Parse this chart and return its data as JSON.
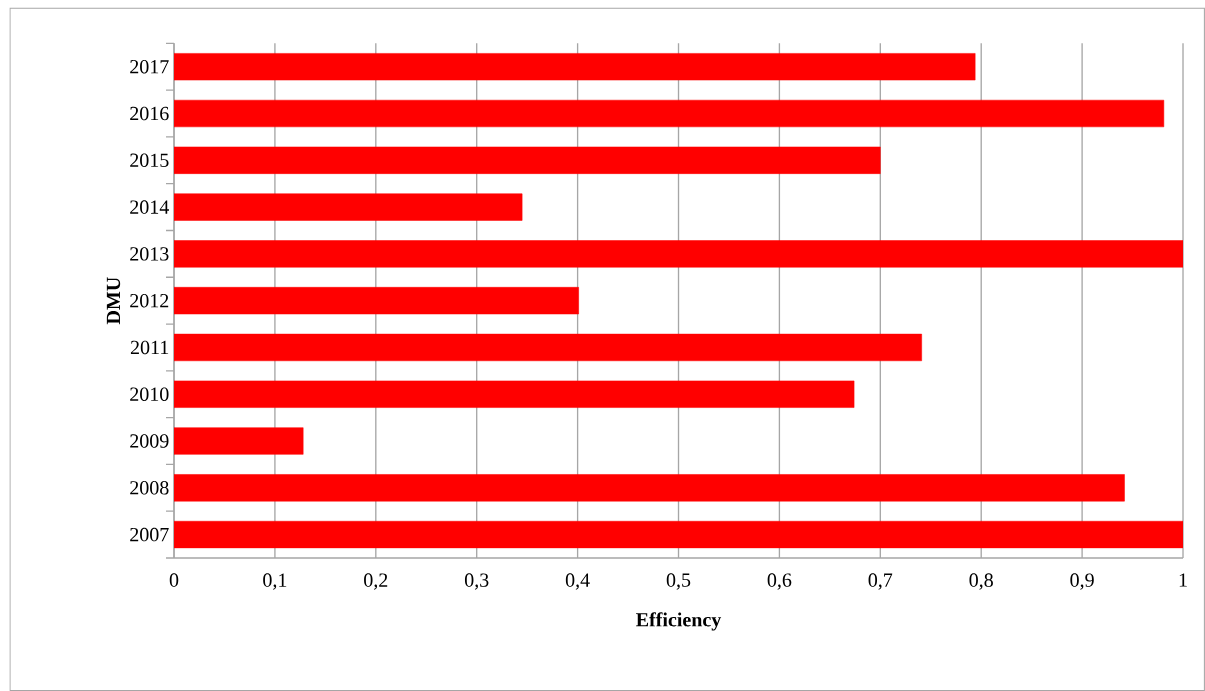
{
  "chart_data": {
    "type": "bar",
    "orientation": "horizontal",
    "xlabel": "Efficiency",
    "ylabel": "DMU",
    "categories": [
      "2017",
      "2016",
      "2015",
      "2014",
      "2013",
      "2012",
      "2011",
      "2010",
      "2009",
      "2008",
      "2007"
    ],
    "values": [
      0.794,
      0.981,
      0.7,
      0.345,
      1.0,
      0.401,
      0.741,
      0.674,
      0.128,
      0.942,
      1.0
    ],
    "color": "#ff0000",
    "xlim": [
      0,
      1
    ],
    "xticks": [
      0,
      {
        "value": 0.1,
        "label": "0,1"
      },
      {
        "value": 0.2,
        "label": "0,2"
      },
      {
        "value": 0.3,
        "label": "0,3"
      },
      {
        "value": 0.4,
        "label": "0,4"
      },
      {
        "value": 0.5,
        "label": "0,5"
      },
      {
        "value": 0.6,
        "label": "0,6"
      },
      {
        "value": 0.7,
        "label": "0,7"
      },
      {
        "value": 0.8,
        "label": "0,8"
      },
      {
        "value": 0.9,
        "label": "0,9"
      },
      1
    ],
    "grid": "x"
  }
}
